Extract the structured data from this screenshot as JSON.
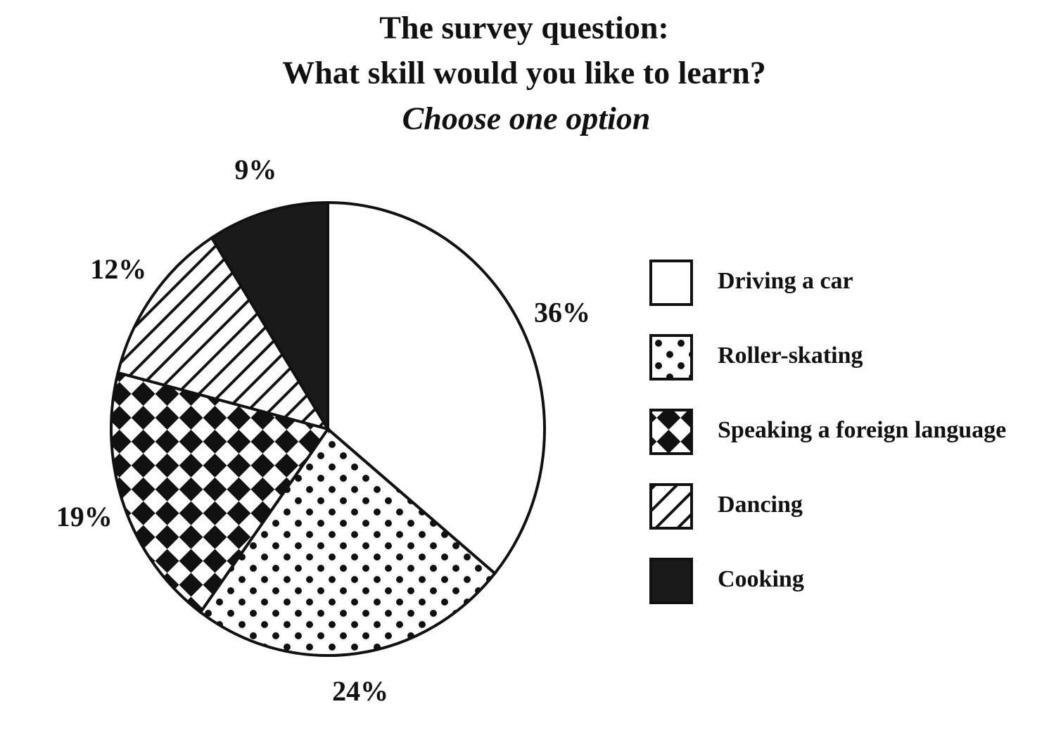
{
  "chart_data": {
    "type": "pie",
    "title": [
      "The survey question:",
      "What skill would you like to learn?"
    ],
    "subtitle": "Choose one option",
    "categories": [
      "Driving a car",
      "Roller-skating",
      "Speaking a foreign language",
      "Dancing",
      "Cooking"
    ],
    "values": [
      36,
      24,
      19,
      12,
      9
    ],
    "value_labels": [
      "36%",
      "24%",
      "19%",
      "12%",
      "9%"
    ],
    "patterns": [
      "none",
      "dots",
      "checker",
      "stripes",
      "solid"
    ]
  }
}
